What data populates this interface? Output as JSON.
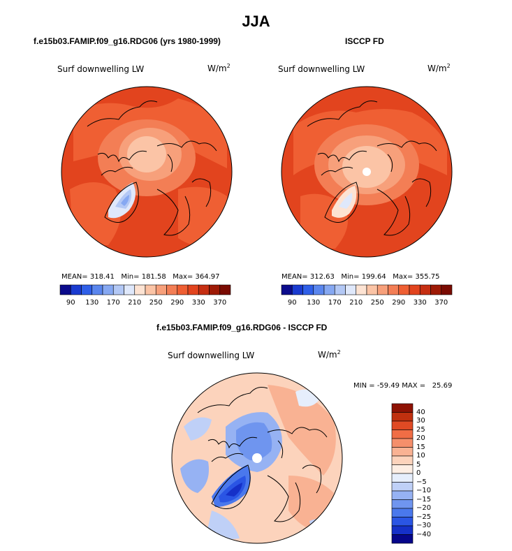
{
  "title": "JJA",
  "panels": [
    {
      "id": "model",
      "heading": "f.e15b03.FAMIP.f09_g16.RDG06 (yrs 1980-1999)",
      "variable": "Surf downwelling LW",
      "units_base": "W/m",
      "units_exp": "2",
      "stats": {
        "mean_label": "MEAN=",
        "mean": "318.41",
        "min_label": "Min=",
        "min": "181.58",
        "max_label": "Max=",
        "max": "364.97"
      },
      "colorbar_ticks": [
        "90",
        "130",
        "170",
        "210",
        "250",
        "290",
        "330",
        "370"
      ]
    },
    {
      "id": "obs",
      "heading": "ISCCP FD",
      "variable": "Surf downwelling LW",
      "units_base": "W/m",
      "units_exp": "2",
      "stats": {
        "mean_label": "MEAN=",
        "mean": "312.63",
        "min_label": "Min=",
        "min": "199.64",
        "max_label": "Max=",
        "max": "355.75"
      },
      "colorbar_ticks": [
        "90",
        "130",
        "170",
        "210",
        "250",
        "290",
        "330",
        "370"
      ]
    },
    {
      "id": "diff",
      "heading": "f.e15b03.FAMIP.f09_g16.RDG06 - ISCCP FD",
      "variable": "Surf downwelling LW",
      "units_base": "W/m",
      "units_exp": "2",
      "stats": {
        "min_label": "MIN =",
        "min": "-59.49",
        "max_label": "MAX =",
        "max": "25.69"
      },
      "colorbar_ticks": [
        "40",
        "30",
        "25",
        "20",
        "15",
        "10",
        "5",
        "0",
        "−5",
        "−10",
        "−15",
        "−20",
        "−25",
        "−30",
        "−40"
      ]
    }
  ],
  "colors": {
    "abs_scale": [
      "#0b0b8c",
      "#1a3bd0",
      "#2f5fe8",
      "#5a86ee",
      "#86a8f2",
      "#b3c8f5",
      "#dfe8fb",
      "#fde3d3",
      "#fbc4a6",
      "#f7a07b",
      "#f37e55",
      "#ef5f33",
      "#e2441e",
      "#c62f12",
      "#9e1a06",
      "#7a0b02"
    ],
    "diff_scale": [
      "#06068a",
      "#1530c8",
      "#2a55e4",
      "#4a78ec",
      "#6f95ef",
      "#96b2f3",
      "#bfd0f7",
      "#e6eefc",
      "#fdeee4",
      "#fcd3bc",
      "#f9b293",
      "#f58f6b",
      "#f06d45",
      "#e04a24",
      "#c0300f",
      "#8e1204"
    ]
  }
}
